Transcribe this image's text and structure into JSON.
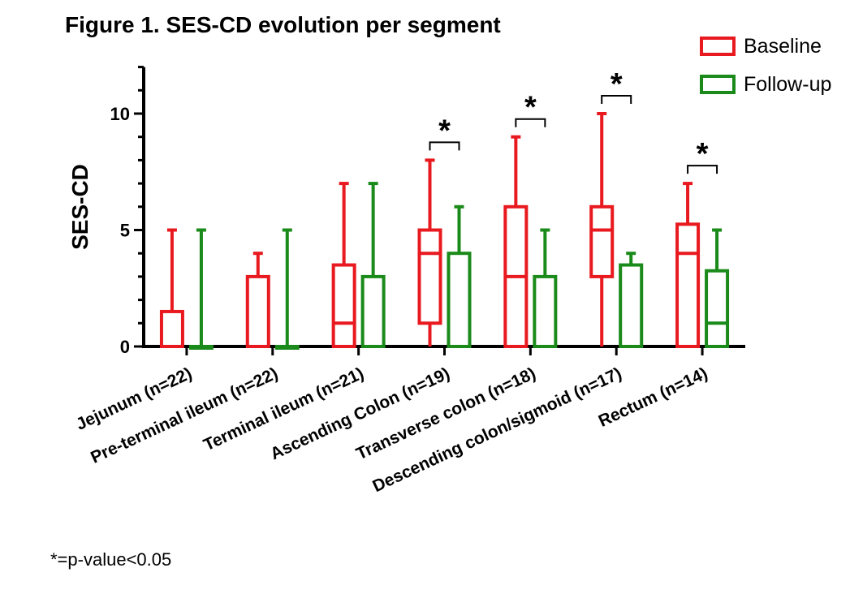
{
  "chart_data": {
    "type": "box",
    "title": "Figure 1. SES-CD evolution per segment",
    "ylabel": "SES-CD",
    "ylim": [
      0,
      12
    ],
    "yticks": [
      0,
      5,
      10
    ],
    "categories": [
      "Jejunum (n=22)",
      "Pre-terminal ileum (n=22)",
      "Terminal ileum (n=21)",
      "Ascending Colon (n=19)",
      "Transverse colon (n=18)",
      "Descending colon/sigmoid (n=17)",
      "Rectum (n=14)"
    ],
    "series": [
      {
        "name": "Baseline",
        "color": "#e8191f",
        "boxes": [
          {
            "min": 0,
            "q1": 0,
            "median": 0,
            "q3": 1.5,
            "max": 5
          },
          {
            "min": 0,
            "q1": 0,
            "median": 0,
            "q3": 3,
            "max": 4
          },
          {
            "min": 0,
            "q1": 0,
            "median": 1,
            "q3": 3.5,
            "max": 7
          },
          {
            "min": 0,
            "q1": 1,
            "median": 4,
            "q3": 5,
            "max": 8
          },
          {
            "min": 0,
            "q1": 0,
            "median": 3,
            "q3": 6,
            "max": 9
          },
          {
            "min": 0,
            "q1": 3,
            "median": 5,
            "q3": 6,
            "max": 10
          },
          {
            "min": 0,
            "q1": 0,
            "median": 4,
            "q3": 5.25,
            "max": 7
          }
        ]
      },
      {
        "name": "Follow-up",
        "color": "#1a8a1a",
        "boxes": [
          {
            "min": 0,
            "q1": 0,
            "median": 0,
            "q3": 0,
            "max": 5
          },
          {
            "min": 0,
            "q1": 0,
            "median": 0,
            "q3": 0,
            "max": 5
          },
          {
            "min": 0,
            "q1": 0,
            "median": 0,
            "q3": 3,
            "max": 7
          },
          {
            "min": 0,
            "q1": 0,
            "median": 0,
            "q3": 4,
            "max": 6
          },
          {
            "min": 0,
            "q1": 0,
            "median": 0,
            "q3": 3,
            "max": 5
          },
          {
            "min": 0,
            "q1": 0,
            "median": 0,
            "q3": 3.5,
            "max": 4
          },
          {
            "min": 0,
            "q1": 0,
            "median": 1,
            "q3": 3.25,
            "max": 5
          }
        ]
      }
    ],
    "significant": [
      false,
      false,
      false,
      true,
      true,
      true,
      true
    ],
    "significance_marker": "*",
    "footnote": "*=p-value<0.05",
    "legend_position": "top-right",
    "grid": false
  }
}
